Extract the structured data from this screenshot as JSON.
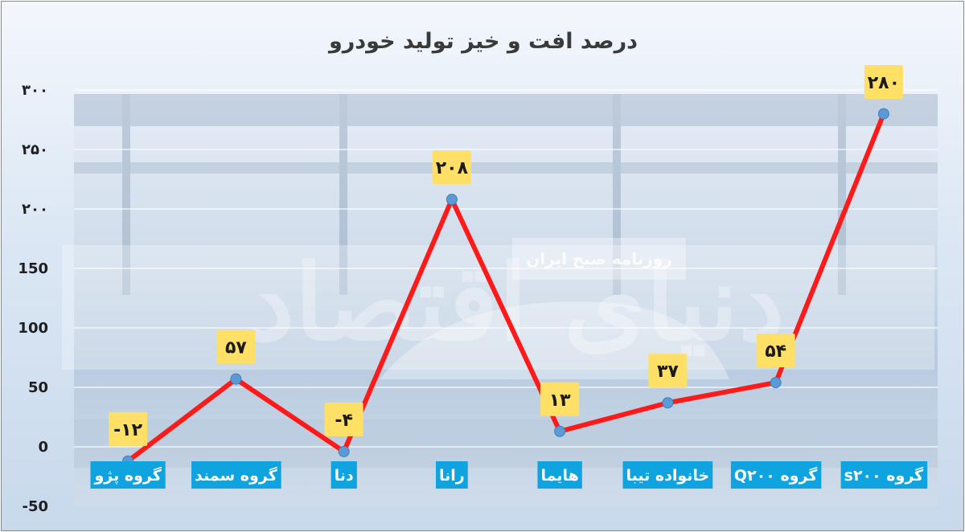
{
  "colors": {
    "line": "#ff1a1a",
    "marker": "#5b9bd5",
    "label_bg": "#ffe066",
    "category_bg": "#0fa3e0",
    "grid": "#ffffff"
  },
  "watermark": {
    "newspaper": "روزنامه صبح ایران",
    "logo": "دنیای اقتصاد"
  },
  "chart_data": {
    "type": "line",
    "title": "درصد افت و خیز تولید خودرو",
    "categories": [
      "گروه پژو",
      "گروه سمند",
      "دنا",
      "رانا",
      "هایما",
      "خانواده تیبا",
      "گروه Q۲۰۰",
      "گروه s۲۰۰"
    ],
    "values": [
      -12,
      57,
      -4,
      208,
      13,
      37,
      54,
      280
    ],
    "data_labels": [
      "-۱۲",
      "۵۷",
      "-۴",
      "۲۰۸",
      "۱۳",
      "۳۷",
      "۵۴",
      "۲۸۰"
    ],
    "yticks": [
      300,
      250,
      200,
      150,
      100,
      50,
      0,
      -50
    ],
    "ytick_labels": [
      "۳۰۰",
      "۲۵۰",
      "۲۰۰",
      "150",
      "100",
      "50",
      "0",
      "-50"
    ],
    "ylim": [
      -50,
      300
    ],
    "grid": true,
    "legend": "none"
  }
}
